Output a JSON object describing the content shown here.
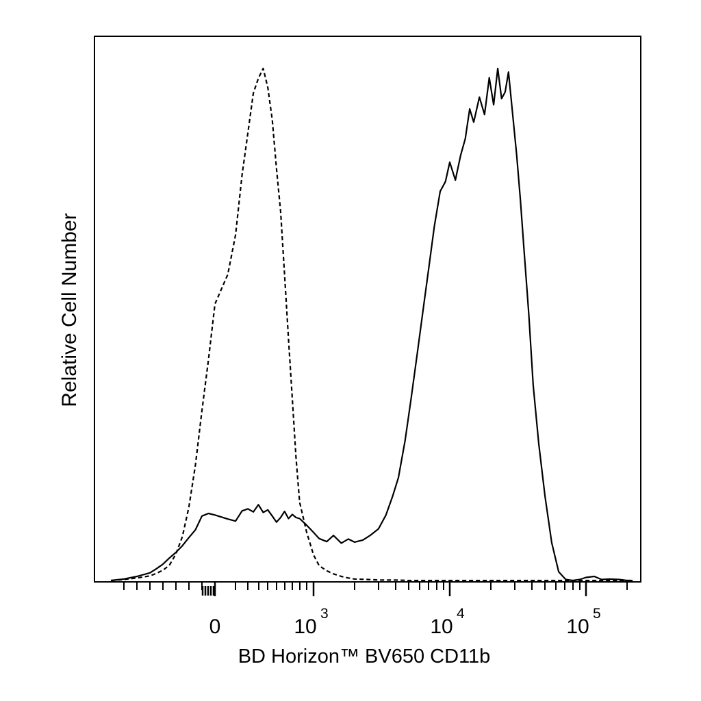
{
  "chart_data": {
    "type": "line",
    "title": "",
    "xlabel": "BD Horizon™ BV650 CD11b",
    "ylabel": "Relative Cell Number",
    "x_scale": "biexponential",
    "xlim": [
      -800,
      220000
    ],
    "grid": false,
    "legend": "none",
    "x_ticks": [
      {
        "value": 0,
        "base": "0",
        "exp": ""
      },
      {
        "value": 1000,
        "base": "10",
        "exp": "3"
      },
      {
        "value": 10000,
        "base": "10",
        "exp": "4"
      },
      {
        "value": 100000,
        "base": "10",
        "exp": "5"
      }
    ],
    "series": [
      {
        "line_style": "solid",
        "color": "#000000",
        "x": [
          -800,
          -700,
          -600,
          -500,
          -450,
          -400,
          -350,
          -300,
          -250,
          -200,
          -150,
          -100,
          -50,
          0,
          50,
          100,
          150,
          200,
          250,
          300,
          350,
          400,
          450,
          500,
          550,
          600,
          650,
          700,
          750,
          800,
          900,
          1000,
          1100,
          1250,
          1400,
          1600,
          1800,
          2000,
          2300,
          2600,
          3000,
          3400,
          3800,
          4200,
          4700,
          5200,
          5800,
          6400,
          7000,
          7700,
          8500,
          9300,
          10000,
          11000,
          12000,
          13000,
          14000,
          15000,
          16500,
          18000,
          19500,
          21000,
          22500,
          24000,
          25500,
          27000,
          29000,
          31000,
          33000,
          35000,
          38000,
          41000,
          45000,
          50000,
          56000,
          63000,
          71000,
          80000,
          90000,
          100000,
          115000,
          130000,
          150000,
          175000,
          200000,
          220000
        ],
        "y": [
          0,
          0.3,
          0.8,
          1.5,
          2.3,
          3.2,
          4.4,
          5.5,
          6.8,
          8.4,
          9.9,
          12.6,
          13.1,
          12.8,
          12.0,
          11.6,
          13.6,
          14.0,
          13.4,
          14.8,
          13.3,
          13.8,
          12.6,
          11.4,
          12.3,
          13.5,
          12.1,
          12.9,
          12.3,
          12.1,
          10.8,
          9.4,
          8.2,
          7.6,
          8.8,
          7.3,
          8.1,
          7.5,
          7.9,
          8.8,
          10.1,
          12.8,
          16.4,
          20.1,
          27.3,
          35.5,
          44.7,
          53.2,
          60.9,
          69.1,
          76.0,
          77.9,
          81.7,
          78.2,
          83.0,
          86.3,
          92.1,
          89.5,
          94.4,
          91.0,
          98.2,
          92.9,
          100,
          94.1,
          95.4,
          99.3,
          90.9,
          83.0,
          74.3,
          64.9,
          52.1,
          38.1,
          26.7,
          16.5,
          7.4,
          1.7,
          0.2,
          0,
          0.2,
          0.6,
          0.8,
          0.2,
          0.3,
          0.2,
          0,
          0
        ]
      },
      {
        "line_style": "dashed",
        "color": "#000000",
        "x": [
          -800,
          -700,
          -600,
          -500,
          -450,
          -400,
          -350,
          -300,
          -250,
          -200,
          -150,
          -100,
          -50,
          0,
          50,
          100,
          150,
          200,
          250,
          300,
          350,
          400,
          450,
          500,
          550,
          600,
          650,
          700,
          750,
          800,
          900,
          1000,
          1100,
          1250,
          1400,
          1600,
          1800,
          2000,
          2500,
          3000,
          4000,
          5000,
          7000,
          10000,
          20000,
          50000,
          100000,
          220000
        ],
        "y": [
          0,
          0.2,
          0.5,
          0.9,
          1.4,
          2.0,
          3.0,
          5.2,
          8.6,
          14.4,
          22.6,
          33.2,
          43.1,
          54.0,
          59.8,
          67.5,
          79.2,
          87.5,
          95.2,
          98.1,
          100,
          96.3,
          90.0,
          80.4,
          72.1,
          59.7,
          47.2,
          35.5,
          24.0,
          15.3,
          9.4,
          5.0,
          2.9,
          1.9,
          1.3,
          0.8,
          0.5,
          0.3,
          0.2,
          0.1,
          0.1,
          0,
          0,
          0,
          0,
          0,
          0,
          0
        ]
      }
    ]
  }
}
